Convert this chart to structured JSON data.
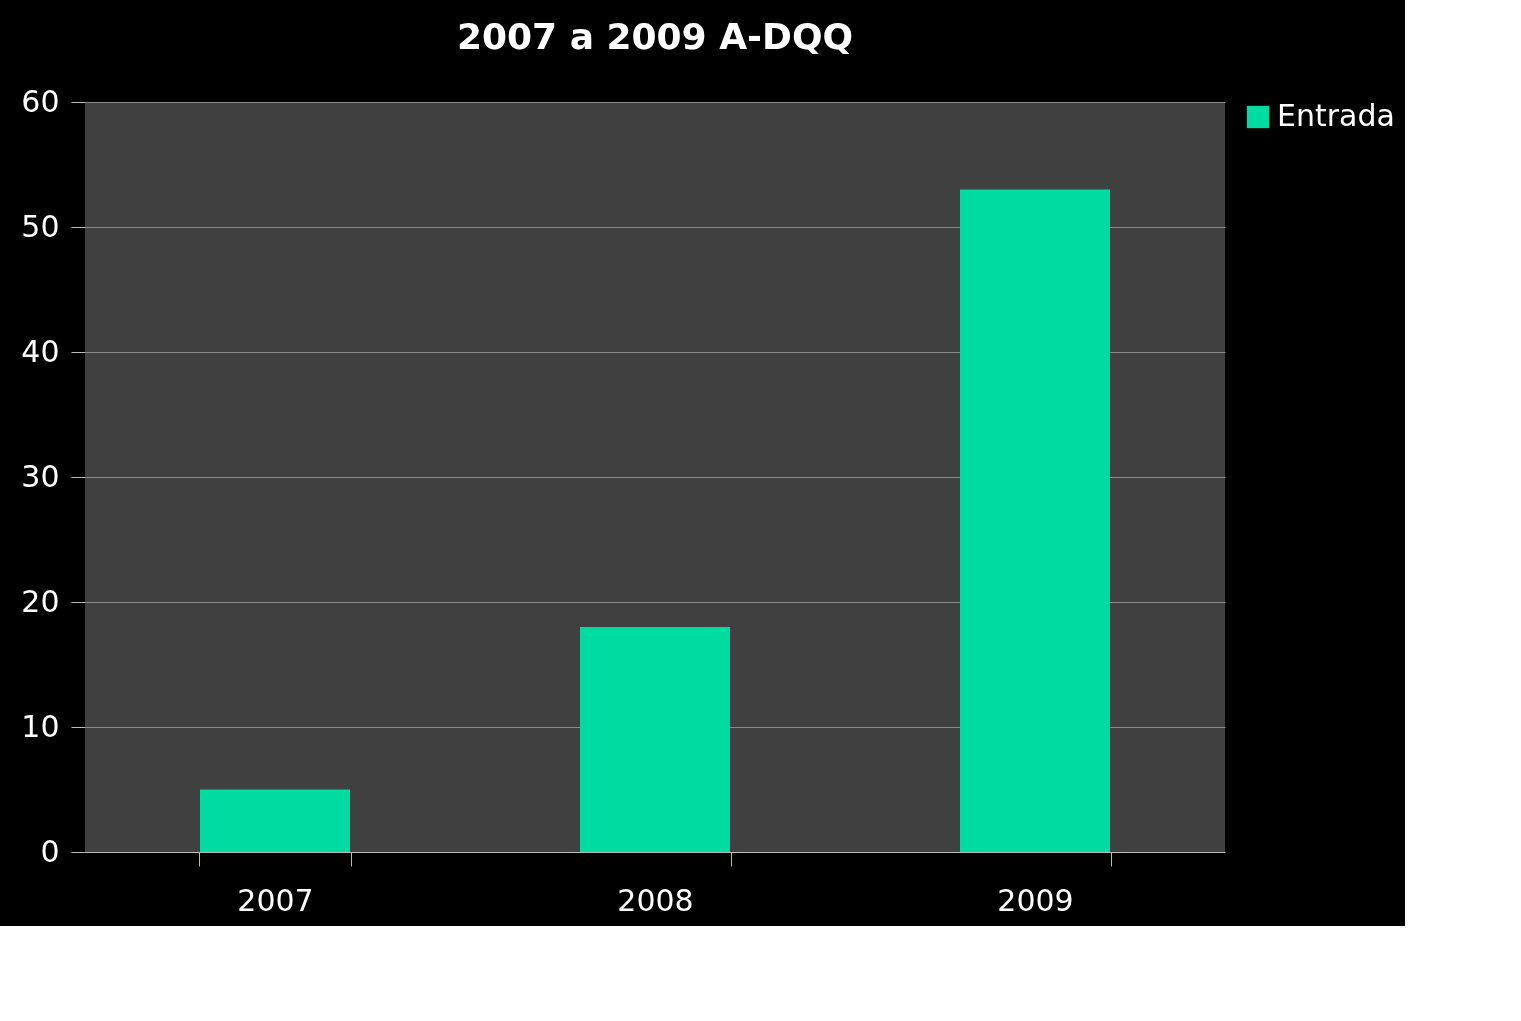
{
  "chart_data": {
    "type": "bar",
    "title": "2007 a 2009 A-DQQ",
    "categories": [
      "2007",
      "2008",
      "2009"
    ],
    "series": [
      {
        "name": "Entrada",
        "color": "#00dba2",
        "values": [
          5,
          18,
          53
        ]
      }
    ],
    "ylim": [
      0,
      60
    ],
    "yticks": [
      0,
      10,
      20,
      30,
      40,
      50,
      60
    ],
    "grid": "y",
    "legend": "right"
  }
}
